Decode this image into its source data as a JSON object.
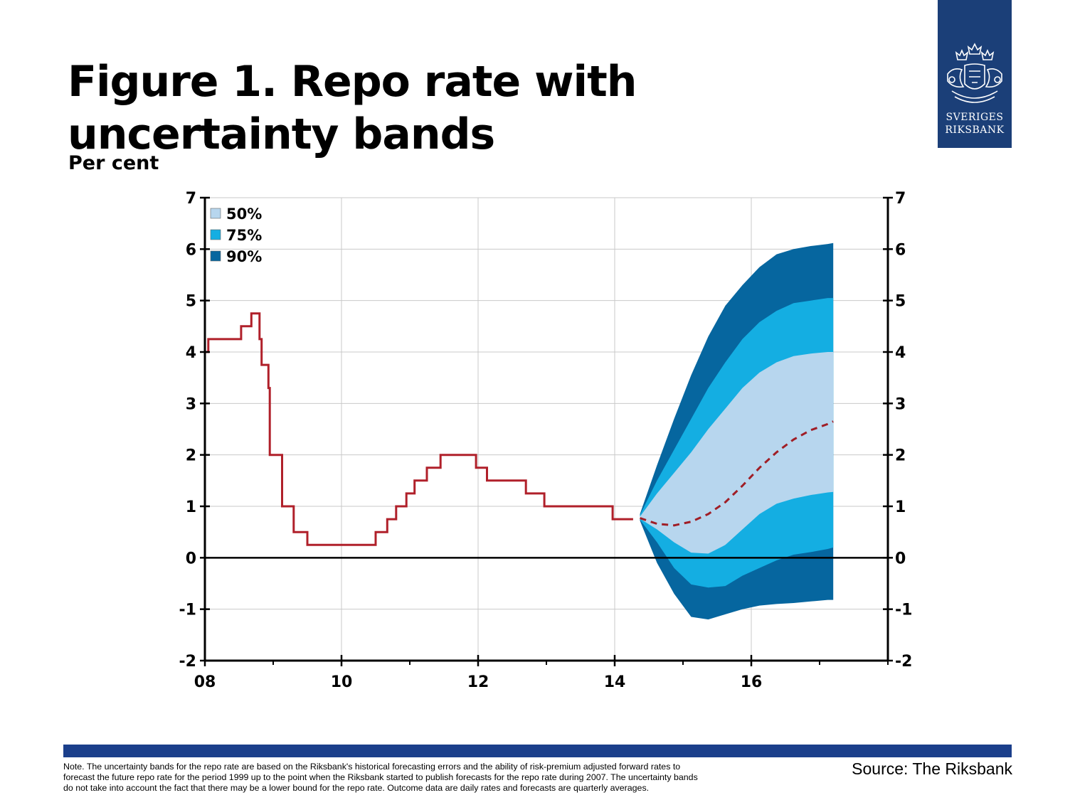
{
  "header": {
    "title_line1": "Figure 1. Repo rate with",
    "title_line2": "uncertainty bands",
    "unit": "Per cent"
  },
  "logo": {
    "line1": "SVERIGES",
    "line2": "RIKSBANK",
    "background": "#1b3f78"
  },
  "chart_data": {
    "type": "area",
    "title": "Figure 1. Repo rate with uncertainty bands",
    "ylabel": "Per cent",
    "xlabel": "",
    "xlim": [
      2008,
      2018
    ],
    "ylim": [
      -2,
      7
    ],
    "x_ticks": [
      {
        "value": 2008,
        "label": "08"
      },
      {
        "value": 2010,
        "label": "10"
      },
      {
        "value": 2012,
        "label": "12"
      },
      {
        "value": 2014,
        "label": "14"
      },
      {
        "value": 2016,
        "label": "16"
      }
    ],
    "y_ticks": [
      7,
      6,
      5,
      4,
      3,
      2,
      1,
      0,
      -1,
      -2
    ],
    "grid": true,
    "legend_position": "top-left",
    "legend": [
      {
        "label": "50%",
        "color": "#b7d6ee"
      },
      {
        "label": "75%",
        "color": "#14aee2"
      },
      {
        "label": "90%",
        "color": "#06669f"
      }
    ],
    "series": [
      {
        "role": "outcome",
        "style": "step",
        "color": "#b0202a",
        "points": [
          [
            2008.0,
            4.0
          ],
          [
            2008.05,
            4.0
          ],
          [
            2008.05,
            4.25
          ],
          [
            2008.53,
            4.25
          ],
          [
            2008.53,
            4.5
          ],
          [
            2008.68,
            4.5
          ],
          [
            2008.68,
            4.75
          ],
          [
            2008.8,
            4.75
          ],
          [
            2008.8,
            4.25
          ],
          [
            2008.83,
            4.25
          ],
          [
            2008.83,
            3.75
          ],
          [
            2008.93,
            3.75
          ],
          [
            2008.93,
            3.3
          ],
          [
            2008.95,
            3.3
          ],
          [
            2008.95,
            2.0
          ],
          [
            2009.13,
            2.0
          ],
          [
            2009.13,
            1.0
          ],
          [
            2009.3,
            1.0
          ],
          [
            2009.3,
            0.5
          ],
          [
            2009.5,
            0.5
          ],
          [
            2009.5,
            0.25
          ],
          [
            2010.5,
            0.25
          ],
          [
            2010.5,
            0.5
          ],
          [
            2010.67,
            0.5
          ],
          [
            2010.67,
            0.75
          ],
          [
            2010.8,
            0.75
          ],
          [
            2010.8,
            1.0
          ],
          [
            2010.95,
            1.0
          ],
          [
            2010.95,
            1.25
          ],
          [
            2011.07,
            1.25
          ],
          [
            2011.07,
            1.5
          ],
          [
            2011.25,
            1.5
          ],
          [
            2011.25,
            1.75
          ],
          [
            2011.45,
            1.75
          ],
          [
            2011.45,
            2.0
          ],
          [
            2011.97,
            2.0
          ],
          [
            2011.97,
            1.75
          ],
          [
            2012.13,
            1.75
          ],
          [
            2012.13,
            1.5
          ],
          [
            2012.7,
            1.5
          ],
          [
            2012.7,
            1.25
          ],
          [
            2012.97,
            1.25
          ],
          [
            2012.97,
            1.0
          ],
          [
            2013.97,
            1.0
          ],
          [
            2013.97,
            0.75
          ],
          [
            2014.27,
            0.75
          ]
        ]
      },
      {
        "role": "forecast",
        "style": "dashed",
        "color": "#a01e26",
        "points": [
          [
            2014.37,
            0.77
          ],
          [
            2014.62,
            0.66
          ],
          [
            2014.87,
            0.63
          ],
          [
            2015.12,
            0.7
          ],
          [
            2015.37,
            0.85
          ],
          [
            2015.62,
            1.08
          ],
          [
            2015.87,
            1.4
          ],
          [
            2016.12,
            1.75
          ],
          [
            2016.37,
            2.05
          ],
          [
            2016.62,
            2.3
          ],
          [
            2016.87,
            2.48
          ],
          [
            2017.12,
            2.6
          ],
          [
            2017.2,
            2.65
          ]
        ]
      },
      {
        "role": "band",
        "name": "90%",
        "color": "#06669f",
        "x": [
          2014.37,
          2014.62,
          2014.87,
          2015.12,
          2015.37,
          2015.62,
          2015.87,
          2016.12,
          2016.37,
          2016.62,
          2016.87,
          2017.12,
          2017.2
        ],
        "upper": [
          0.85,
          1.8,
          2.7,
          3.55,
          4.3,
          4.9,
          5.3,
          5.65,
          5.9,
          6.0,
          6.06,
          6.1,
          6.12
        ],
        "lower": [
          0.72,
          -0.1,
          -0.7,
          -1.15,
          -1.2,
          -1.1,
          -1.0,
          -0.93,
          -0.9,
          -0.88,
          -0.85,
          -0.82,
          -0.82
        ]
      },
      {
        "role": "band",
        "name": "75%",
        "color": "#14aee2",
        "x": [
          2014.37,
          2014.62,
          2014.87,
          2015.12,
          2015.37,
          2015.62,
          2015.87,
          2016.12,
          2016.37,
          2016.62,
          2016.87,
          2017.12,
          2017.2
        ],
        "upper": [
          0.83,
          1.5,
          2.1,
          2.7,
          3.3,
          3.8,
          4.25,
          4.58,
          4.8,
          4.95,
          5.0,
          5.05,
          5.05
        ],
        "lower": [
          0.74,
          0.3,
          -0.2,
          -0.52,
          -0.58,
          -0.55,
          -0.35,
          -0.2,
          -0.05,
          0.06,
          0.11,
          0.17,
          0.2
        ]
      },
      {
        "role": "band",
        "name": "50%",
        "color": "#b7d6ee",
        "x": [
          2014.37,
          2014.62,
          2014.87,
          2015.12,
          2015.37,
          2015.62,
          2015.87,
          2016.12,
          2016.37,
          2016.62,
          2016.87,
          2017.12,
          2017.2
        ],
        "upper": [
          0.8,
          1.25,
          1.65,
          2.05,
          2.5,
          2.9,
          3.3,
          3.6,
          3.8,
          3.92,
          3.97,
          4.0,
          4.0
        ],
        "lower": [
          0.76,
          0.55,
          0.3,
          0.1,
          0.08,
          0.25,
          0.55,
          0.85,
          1.05,
          1.15,
          1.22,
          1.27,
          1.28
        ]
      }
    ]
  },
  "footer": {
    "note_line1": "Note. The uncertainty bands for the repo rate are based on the Riksbank's historical forecasting errors and the ability of risk-premium adjusted forward rates to",
    "note_line2": "forecast the future repo rate for the period 1999 up to the point when the Riksbank started to publish forecasts for the repo rate during 2007. The uncertainty bands",
    "note_line3": "do not take into account the fact that there may be a lower bound for the repo rate. Outcome data are daily rates and forecasts are quarterly averages.",
    "source": "Source: The Riksbank",
    "bar_color": "#1b3f8b"
  }
}
